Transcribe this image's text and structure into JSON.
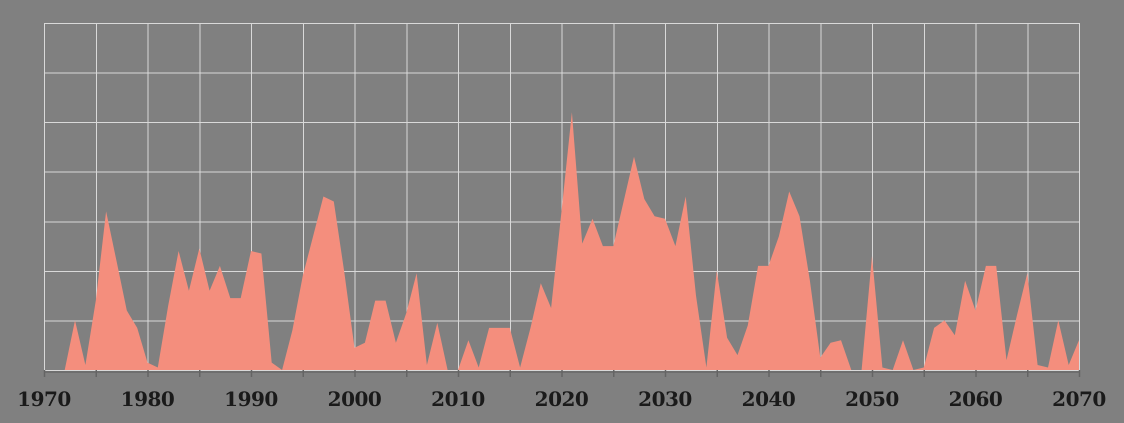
{
  "window": {
    "description": "Area chart on gray background with white gridlines, no title, no y-axis labels, bold serif year labels along the bottom axis"
  },
  "colors": {
    "background": "#808080",
    "area_fill": "#F48E7D",
    "gridline": "#D9D9D9",
    "axis_label": "#1A1A1A",
    "tick": "#646464",
    "axis_shadow": "rgba(0,0,0,0.14)"
  },
  "chart_data": {
    "type": "area",
    "title": "",
    "xlabel": "",
    "ylabel": "",
    "legend": "none",
    "grid": true,
    "x_start": 1970,
    "x_step_years": 1,
    "x_end": 2070,
    "x_tick_labels": [
      "1970",
      "1980",
      "1990",
      "2000",
      "2010",
      "2020",
      "2030",
      "2040",
      "2050",
      "2060",
      "2070"
    ],
    "x_label_interval_years": 10,
    "x_gridline_interval_years": 5,
    "y_axis_labels_visible": false,
    "y_unit": "gridline units (each horizontal gridline band = 1 unit)",
    "ylim": [
      0,
      7
    ],
    "values": [
      0,
      0,
      0,
      1.0,
      0.1,
      1.4,
      3.2,
      2.2,
      1.2,
      0.85,
      0.15,
      0.05,
      1.3,
      2.4,
      1.6,
      2.45,
      1.6,
      2.1,
      1.45,
      1.45,
      2.4,
      2.35,
      0.15,
      0,
      0.8,
      1.9,
      2.7,
      3.5,
      3.4,
      2.0,
      0.45,
      0.55,
      1.4,
      1.4,
      0.55,
      1.15,
      1.95,
      0.1,
      0.95,
      0,
      0,
      0.6,
      0.05,
      0.85,
      0.85,
      0.85,
      0.05,
      0.85,
      1.75,
      1.25,
      3.2,
      5.2,
      2.55,
      3.05,
      2.5,
      2.5,
      3.4,
      4.3,
      3.45,
      3.1,
      3.05,
      2.5,
      3.5,
      1.5,
      0.05,
      2.0,
      0.65,
      0.3,
      0.9,
      2.1,
      2.1,
      2.7,
      3.6,
      3.1,
      1.8,
      0.25,
      0.55,
      0.6,
      0,
      0,
      2.3,
      0.05,
      0,
      0.6,
      0,
      0.05,
      0.85,
      1.0,
      0.7,
      1.8,
      1.2,
      2.1,
      2.1,
      0.2,
      1.1,
      1.95,
      0.1,
      0.05,
      1.0,
      0.1,
      0.6
    ]
  }
}
